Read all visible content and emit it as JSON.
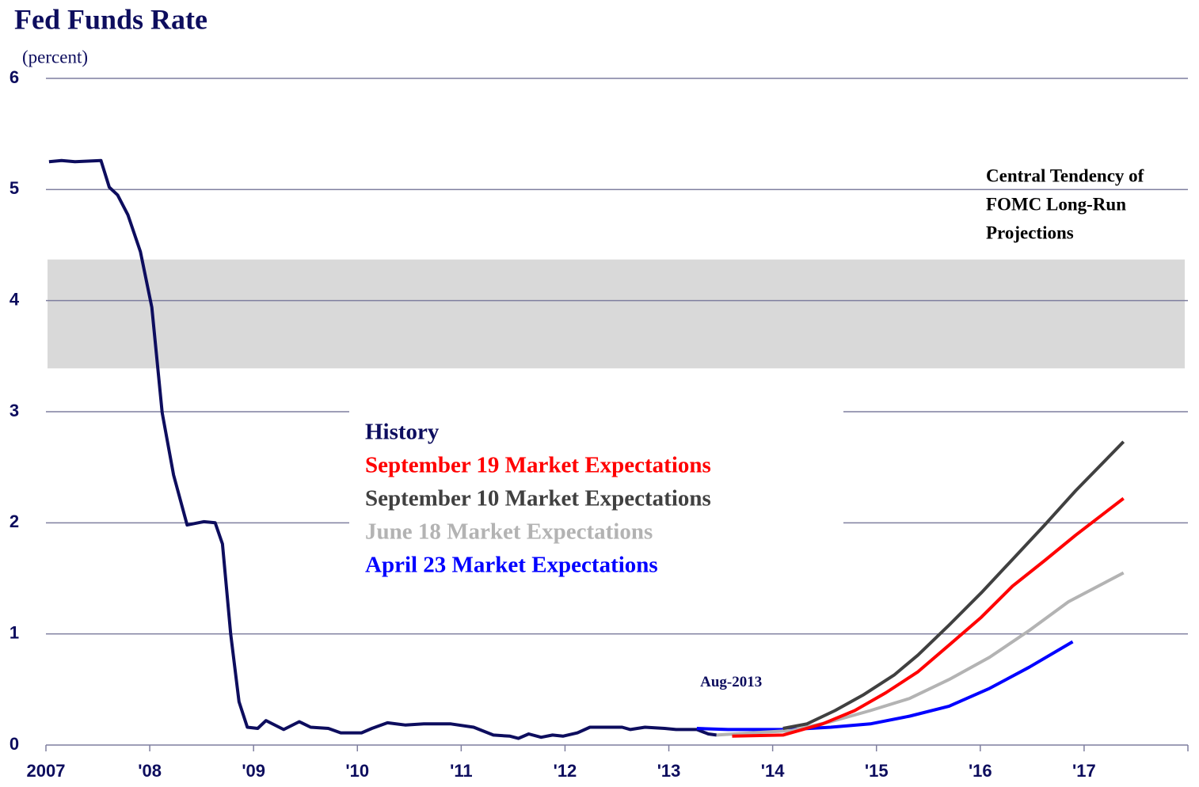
{
  "chart_data": {
    "type": "line",
    "title": "Fed Funds Rate",
    "subtitle": "(percent)",
    "xlim": [
      2007,
      2018
    ],
    "xticks": [
      2007,
      {
        "value": 2008,
        "label": "'08"
      },
      {
        "value": 2009,
        "label": "'09"
      },
      {
        "value": 2010,
        "label": "'10"
      },
      {
        "value": 2011,
        "label": "'11"
      },
      {
        "value": 2012,
        "label": "'12"
      },
      {
        "value": 2013,
        "label": "'13"
      },
      {
        "value": 2014,
        "label": "'14"
      },
      {
        "value": 2015,
        "label": "'15"
      },
      {
        "value": 2016,
        "label": "'16"
      },
      {
        "value": 2017,
        "label": "'17"
      }
    ],
    "ylim": [
      0,
      6
    ],
    "yticks": [
      0,
      1,
      2,
      3,
      4,
      5,
      6
    ],
    "grid": true,
    "band": {
      "ymin": 3.39,
      "ymax": 4.37,
      "color": "#d9d9d9",
      "label": [
        "Central Tendency of",
        "FOMC Long-Run",
        "Projections"
      ]
    },
    "annotation": {
      "text": "Aug-2013",
      "x": 2013.6,
      "y": 0.56
    },
    "series": [
      {
        "name": "History",
        "color": "#0d0d5e",
        "x": [
          2007.03,
          2007.15,
          2007.28,
          2007.53,
          2007.61,
          2007.69,
          2007.79,
          2007.91,
          2008.02,
          2008.12,
          2008.23,
          2008.36,
          2008.52,
          2008.63,
          2008.7,
          2008.78,
          2008.86,
          2008.94,
          2009.04,
          2009.12,
          2009.29,
          2009.44,
          2009.55,
          2009.72,
          2009.84,
          2010.04,
          2010.14,
          2010.29,
          2010.46,
          2010.64,
          2010.9,
          2011.12,
          2011.31,
          2011.47,
          2011.55,
          2011.65,
          2011.77,
          2011.88,
          2011.98,
          2012.12,
          2012.24,
          2012.38,
          2012.55,
          2012.63,
          2012.77,
          2012.96,
          2013.07,
          2013.27,
          2013.38,
          2013.46
        ],
        "values": [
          5.25,
          5.26,
          5.25,
          5.26,
          5.02,
          4.95,
          4.77,
          4.44,
          3.94,
          2.99,
          2.43,
          1.98,
          2.01,
          2.0,
          1.81,
          1.0,
          0.39,
          0.16,
          0.15,
          0.22,
          0.14,
          0.21,
          0.16,
          0.15,
          0.11,
          0.11,
          0.15,
          0.2,
          0.18,
          0.19,
          0.19,
          0.16,
          0.09,
          0.08,
          0.06,
          0.1,
          0.07,
          0.09,
          0.08,
          0.11,
          0.16,
          0.16,
          0.16,
          0.14,
          0.16,
          0.15,
          0.14,
          0.14,
          0.1,
          0.09
        ]
      },
      {
        "name": "September 19 Market Expectations",
        "color": "#ff0000",
        "x": [
          2013.61,
          2014.1,
          2014.48,
          2014.79,
          2015.09,
          2015.4,
          2015.7,
          2016.01,
          2016.31,
          2016.62,
          2016.92,
          2017.38
        ],
        "values": [
          0.08,
          0.09,
          0.19,
          0.31,
          0.47,
          0.66,
          0.9,
          1.15,
          1.43,
          1.66,
          1.89,
          2.22
        ]
      },
      {
        "name": "September 10 Market Expectations",
        "color": "#404040",
        "x": [
          2014.1,
          2014.33,
          2014.6,
          2014.87,
          2015.17,
          2015.4,
          2015.7,
          2016.01,
          2016.31,
          2016.62,
          2016.92,
          2017.38
        ],
        "values": [
          0.15,
          0.19,
          0.31,
          0.45,
          0.63,
          0.81,
          1.08,
          1.37,
          1.67,
          1.98,
          2.29,
          2.73
        ]
      },
      {
        "name": "June 18 Market Expectations",
        "color": "#b3b3b3",
        "x": [
          2013.46,
          2013.8,
          2014.18,
          2014.56,
          2014.94,
          2015.32,
          2015.7,
          2016.09,
          2016.47,
          2016.85,
          2017.38
        ],
        "values": [
          0.09,
          0.11,
          0.13,
          0.21,
          0.31,
          0.42,
          0.59,
          0.79,
          1.03,
          1.29,
          1.55
        ]
      },
      {
        "name": "April 23 Market Expectations",
        "color": "#0000ff",
        "x": [
          2013.27,
          2013.57,
          2014.18,
          2014.56,
          2014.94,
          2015.32,
          2015.7,
          2016.09,
          2016.47,
          2016.89
        ],
        "values": [
          0.15,
          0.14,
          0.14,
          0.16,
          0.19,
          0.26,
          0.35,
          0.51,
          0.7,
          0.93
        ]
      }
    ]
  }
}
